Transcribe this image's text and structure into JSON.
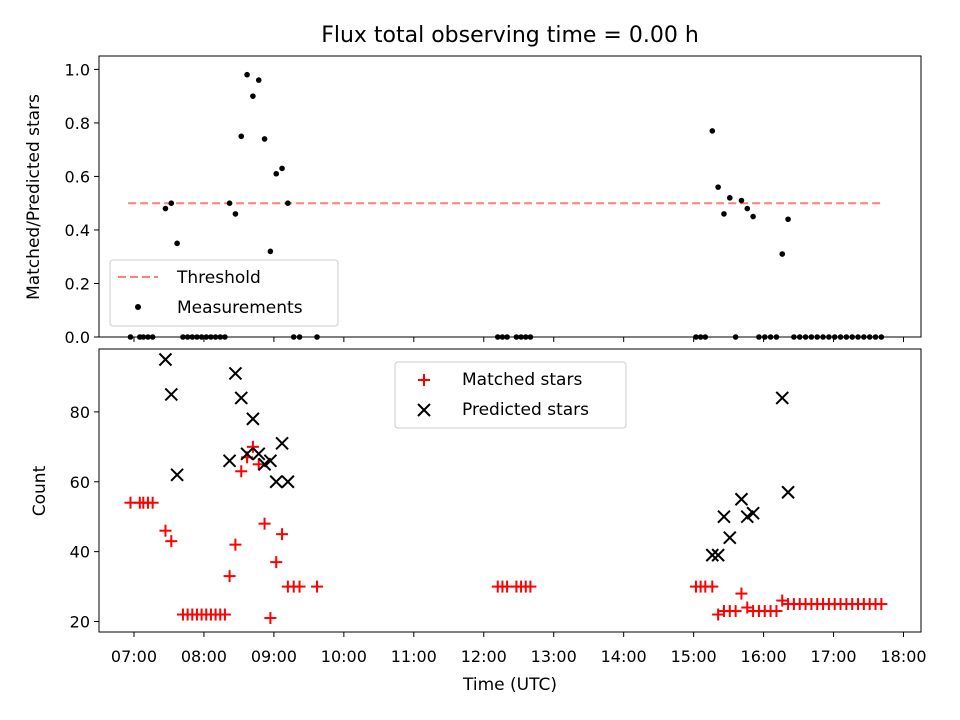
{
  "chart_data": [
    {
      "type": "scatter",
      "title": "Flux total observing time = 0.00 h",
      "xlabel": "",
      "ylabel": "Matched/Predicted stars",
      "xlim": [
        "06:30",
        "18:15"
      ],
      "ylim": [
        0.0,
        1.05
      ],
      "y_ticks": [
        "0.0",
        "0.2",
        "0.4",
        "0.6",
        "0.8",
        "1.0"
      ],
      "legend": {
        "placement": "lower-left"
      },
      "series": [
        {
          "name": "Threshold",
          "style": "dashed-line",
          "color": "#ff7f7f",
          "points": [
            [
              "06:55",
              0.5
            ],
            [
              "17:40",
              0.5
            ]
          ]
        },
        {
          "name": "Measurements",
          "style": "dot",
          "color": "#000000",
          "points": [
            [
              "06:57",
              0.0
            ],
            [
              "07:05",
              0.0
            ],
            [
              "07:08",
              0.0
            ],
            [
              "07:12",
              0.0
            ],
            [
              "07:16",
              0.0
            ],
            [
              "07:27",
              0.48
            ],
            [
              "07:32",
              0.5
            ],
            [
              "07:37",
              0.35
            ],
            [
              "07:42",
              0.0
            ],
            [
              "07:46",
              0.0
            ],
            [
              "07:50",
              0.0
            ],
            [
              "07:54",
              0.0
            ],
            [
              "07:58",
              0.0
            ],
            [
              "08:02",
              0.0
            ],
            [
              "08:06",
              0.0
            ],
            [
              "08:10",
              0.0
            ],
            [
              "08:14",
              0.0
            ],
            [
              "08:18",
              0.0
            ],
            [
              "08:22",
              0.5
            ],
            [
              "08:27",
              0.46
            ],
            [
              "08:32",
              0.75
            ],
            [
              "08:37",
              0.98
            ],
            [
              "08:42",
              0.9
            ],
            [
              "08:47",
              0.96
            ],
            [
              "08:52",
              0.74
            ],
            [
              "08:57",
              0.32
            ],
            [
              "09:02",
              0.61
            ],
            [
              "09:07",
              0.63
            ],
            [
              "09:12",
              0.5
            ],
            [
              "09:17",
              0.0
            ],
            [
              "09:22",
              0.0
            ],
            [
              "09:37",
              0.0
            ],
            [
              "12:12",
              0.0
            ],
            [
              "12:16",
              0.0
            ],
            [
              "12:20",
              0.0
            ],
            [
              "12:28",
              0.0
            ],
            [
              "12:32",
              0.0
            ],
            [
              "12:36",
              0.0
            ],
            [
              "12:40",
              0.0
            ],
            [
              "15:02",
              0.0
            ],
            [
              "15:06",
              0.0
            ],
            [
              "15:10",
              0.0
            ],
            [
              "15:16",
              0.77
            ],
            [
              "15:21",
              0.56
            ],
            [
              "15:26",
              0.46
            ],
            [
              "15:31",
              0.52
            ],
            [
              "15:36",
              0.0
            ],
            [
              "15:41",
              0.51
            ],
            [
              "15:46",
              0.48
            ],
            [
              "15:51",
              0.45
            ],
            [
              "15:56",
              0.0
            ],
            [
              "16:01",
              0.0
            ],
            [
              "16:06",
              0.0
            ],
            [
              "16:11",
              0.0
            ],
            [
              "16:16",
              0.31
            ],
            [
              "16:21",
              0.44
            ],
            [
              "16:26",
              0.0
            ],
            [
              "16:31",
              0.0
            ],
            [
              "16:36",
              0.0
            ],
            [
              "16:41",
              0.0
            ],
            [
              "16:46",
              0.0
            ],
            [
              "16:51",
              0.0
            ],
            [
              "16:56",
              0.0
            ],
            [
              "17:01",
              0.0
            ],
            [
              "17:06",
              0.0
            ],
            [
              "17:11",
              0.0
            ],
            [
              "17:16",
              0.0
            ],
            [
              "17:21",
              0.0
            ],
            [
              "17:26",
              0.0
            ],
            [
              "17:31",
              0.0
            ],
            [
              "17:36",
              0.0
            ],
            [
              "17:41",
              0.0
            ]
          ]
        }
      ]
    },
    {
      "type": "scatter",
      "title": "",
      "xlabel": "Time (UTC)",
      "ylabel": "Count",
      "xlim": [
        "06:30",
        "18:15"
      ],
      "ylim": [
        17,
        98
      ],
      "x_ticks": [
        "07:00",
        "08:00",
        "09:00",
        "10:00",
        "11:00",
        "12:00",
        "13:00",
        "14:00",
        "15:00",
        "16:00",
        "17:00",
        "18:00"
      ],
      "y_ticks": [
        "20",
        "40",
        "60",
        "80"
      ],
      "legend": {
        "placement": "upper-center"
      },
      "series": [
        {
          "name": "Matched stars",
          "style": "plus",
          "color": "#ff0000",
          "points": [
            [
              "06:57",
              54
            ],
            [
              "07:05",
              54
            ],
            [
              "07:08",
              54
            ],
            [
              "07:12",
              54
            ],
            [
              "07:16",
              54
            ],
            [
              "07:27",
              46
            ],
            [
              "07:32",
              43
            ],
            [
              "07:42",
              22
            ],
            [
              "07:46",
              22
            ],
            [
              "07:50",
              22
            ],
            [
              "07:54",
              22
            ],
            [
              "07:58",
              22
            ],
            [
              "08:02",
              22
            ],
            [
              "08:06",
              22
            ],
            [
              "08:10",
              22
            ],
            [
              "08:14",
              22
            ],
            [
              "08:18",
              22
            ],
            [
              "08:22",
              33
            ],
            [
              "08:27",
              42
            ],
            [
              "08:32",
              63
            ],
            [
              "08:37",
              67
            ],
            [
              "08:42",
              70
            ],
            [
              "08:47",
              65
            ],
            [
              "08:52",
              48
            ],
            [
              "08:57",
              21
            ],
            [
              "09:02",
              37
            ],
            [
              "09:07",
              45
            ],
            [
              "09:12",
              30
            ],
            [
              "09:17",
              30
            ],
            [
              "09:22",
              30
            ],
            [
              "09:37",
              30
            ],
            [
              "12:12",
              30
            ],
            [
              "12:16",
              30
            ],
            [
              "12:20",
              30
            ],
            [
              "12:28",
              30
            ],
            [
              "12:32",
              30
            ],
            [
              "12:36",
              30
            ],
            [
              "12:40",
              30
            ],
            [
              "15:02",
              30
            ],
            [
              "15:06",
              30
            ],
            [
              "15:10",
              30
            ],
            [
              "15:16",
              30
            ],
            [
              "15:21",
              22
            ],
            [
              "15:26",
              23
            ],
            [
              "15:31",
              23
            ],
            [
              "15:36",
              23
            ],
            [
              "15:41",
              28
            ],
            [
              "15:46",
              24
            ],
            [
              "15:51",
              23
            ],
            [
              "15:56",
              23
            ],
            [
              "16:01",
              23
            ],
            [
              "16:06",
              23
            ],
            [
              "16:11",
              23
            ],
            [
              "16:16",
              26
            ],
            [
              "16:21",
              25
            ],
            [
              "16:26",
              25
            ],
            [
              "16:31",
              25
            ],
            [
              "16:36",
              25
            ],
            [
              "16:41",
              25
            ],
            [
              "16:46",
              25
            ],
            [
              "16:51",
              25
            ],
            [
              "16:56",
              25
            ],
            [
              "17:01",
              25
            ],
            [
              "17:06",
              25
            ],
            [
              "17:11",
              25
            ],
            [
              "17:16",
              25
            ],
            [
              "17:21",
              25
            ],
            [
              "17:26",
              25
            ],
            [
              "17:31",
              25
            ],
            [
              "17:36",
              25
            ],
            [
              "17:41",
              25
            ]
          ]
        },
        {
          "name": "Predicted stars",
          "style": "x",
          "color": "#000000",
          "points": [
            [
              "07:27",
              95
            ],
            [
              "07:32",
              85
            ],
            [
              "07:37",
              62
            ],
            [
              "08:22",
              66
            ],
            [
              "08:27",
              91
            ],
            [
              "08:32",
              84
            ],
            [
              "08:37",
              68
            ],
            [
              "08:42",
              78
            ],
            [
              "08:47",
              68
            ],
            [
              "08:52",
              65
            ],
            [
              "08:57",
              66
            ],
            [
              "09:02",
              60
            ],
            [
              "09:07",
              71
            ],
            [
              "09:12",
              60
            ],
            [
              "15:16",
              39
            ],
            [
              "15:21",
              39
            ],
            [
              "15:26",
              50
            ],
            [
              "15:31",
              44
            ],
            [
              "15:41",
              55
            ],
            [
              "15:46",
              50
            ],
            [
              "15:51",
              51
            ],
            [
              "16:16",
              84
            ],
            [
              "16:21",
              57
            ]
          ]
        }
      ]
    }
  ]
}
